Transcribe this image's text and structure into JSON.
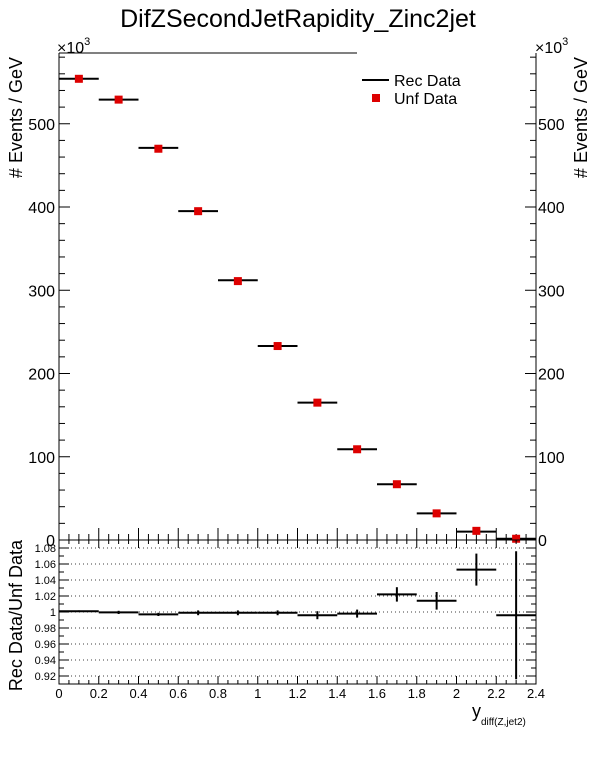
{
  "chart_data": [
    {
      "type": "scatter",
      "title": "DifZSecondJetRapidity_Zinc2jet",
      "ylabel": "# Events / GeV",
      "y_exponent_label": "×10³",
      "y_exponent_power": "3",
      "ylim": [
        0,
        585
      ],
      "yticks": [
        0,
        100,
        200,
        300,
        400,
        500
      ],
      "ytick_labels": [
        "0",
        "100",
        "200",
        "300",
        "400",
        "500"
      ],
      "xlim": [
        0,
        2.4
      ],
      "legend_position": "top-right",
      "series": [
        {
          "name": "Rec Data",
          "style": "horizontal error bars (line)",
          "color": "#000000",
          "x": [
            0.1,
            0.3,
            0.5,
            0.7,
            0.9,
            1.1,
            1.3,
            1.5,
            1.7,
            1.9,
            2.1,
            2.3
          ],
          "y": [
            554,
            529,
            471,
            395,
            312,
            233,
            165,
            109,
            67,
            32,
            10,
            1.5
          ],
          "xerr": 0.1
        },
        {
          "name": "Unf Data",
          "style": "square markers",
          "color": "#dd0000",
          "x": [
            0.1,
            0.3,
            0.5,
            0.7,
            0.9,
            1.1,
            1.3,
            1.5,
            1.7,
            1.9,
            2.1,
            2.3
          ],
          "y": [
            554,
            529,
            470,
            395,
            311,
            233,
            165,
            109,
            67,
            32,
            11,
            1.5
          ]
        }
      ]
    },
    {
      "type": "scatter",
      "ylabel": "Rec Data/Unf Data",
      "xlabel": "y",
      "xlabel_sub": "diff(Z,jet2)",
      "ylim": [
        0.91,
        1.09
      ],
      "yticks": [
        0.92,
        0.94,
        0.96,
        0.98,
        1.0,
        1.02,
        1.04,
        1.06,
        1.08
      ],
      "ytick_labels": [
        "0.92",
        "0.94",
        "0.96",
        "0.98",
        "1",
        "1.02",
        "1.04",
        "1.06",
        "1.08"
      ],
      "xlim": [
        0,
        2.4
      ],
      "xticks": [
        0,
        0.2,
        0.4,
        0.6,
        0.8,
        1.0,
        1.2,
        1.4,
        1.6,
        1.8,
        2.0,
        2.2,
        2.4
      ],
      "xtick_labels": [
        "0",
        "0.2",
        "0.4",
        "0.6",
        "0.8",
        "1",
        "1.2",
        "1.4",
        "1.6",
        "1.8",
        "2",
        "2.2",
        "2.4"
      ],
      "grid": "horizontal dotted",
      "series": [
        {
          "color": "#000000",
          "x": [
            0.1,
            0.3,
            0.5,
            0.7,
            0.9,
            1.1,
            1.3,
            1.5,
            1.7,
            1.9,
            2.1,
            2.3
          ],
          "y": [
            1.001,
            0.9995,
            0.997,
            0.999,
            0.999,
            0.999,
            0.996,
            0.998,
            1.022,
            1.014,
            1.053,
            0.996
          ],
          "yerr": [
            0.001,
            0.002,
            0.002,
            0.003,
            0.003,
            0.003,
            0.005,
            0.005,
            0.009,
            0.011,
            0.02,
            0.08
          ],
          "xerr": 0.1
        }
      ]
    }
  ]
}
